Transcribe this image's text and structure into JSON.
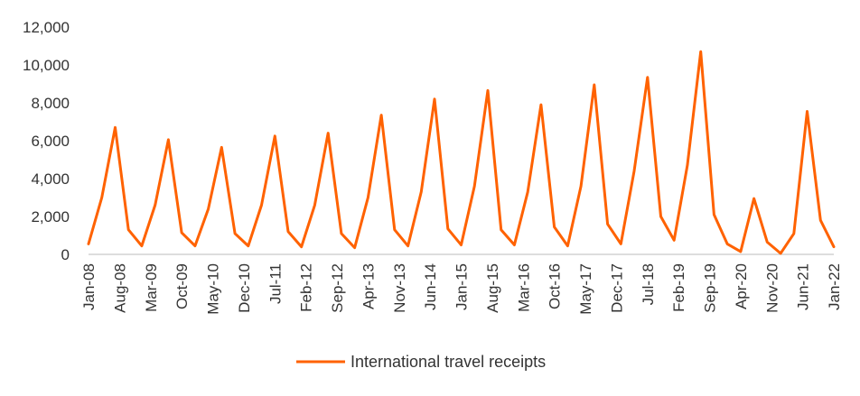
{
  "chart_data": {
    "type": "line",
    "ylim": [
      0,
      12000
    ],
    "y_ticks": [
      "0",
      "2,000",
      "4,000",
      "6,000",
      "8,000",
      "10,000",
      "12,000"
    ],
    "x_tick_labels": [
      "Jan-08",
      "Aug-08",
      "Mar-09",
      "Oct-09",
      "May-10",
      "Dec-10",
      "Jul-11",
      "Feb-12",
      "Sep-12",
      "Apr-13",
      "Nov-13",
      "Jun-14",
      "Jan-15",
      "Aug-15",
      "Mar-16",
      "Oct-16",
      "May-17",
      "Dec-17",
      "Jul-18",
      "Feb-19",
      "Sep-19",
      "Apr-20",
      "Nov-20",
      "Jun-21",
      "Jan-22"
    ],
    "grid": false,
    "legend_position": "bottom-center",
    "series": [
      {
        "name": "International travel receipts",
        "color": "#ff6200",
        "x": [
          "Jan-08",
          "Apr-08",
          "Jul-08",
          "Oct-08",
          "Jan-09",
          "Apr-09",
          "Jul-09",
          "Oct-09",
          "Jan-10",
          "Apr-10",
          "Jul-10",
          "Oct-10",
          "Jan-11",
          "Apr-11",
          "Jul-11",
          "Oct-11",
          "Jan-12",
          "Apr-12",
          "Jul-12",
          "Oct-12",
          "Jan-13",
          "Apr-13",
          "Jul-13",
          "Oct-13",
          "Jan-14",
          "Apr-14",
          "Jul-14",
          "Oct-14",
          "Jan-15",
          "Apr-15",
          "Jul-15",
          "Oct-15",
          "Jan-16",
          "Apr-16",
          "Jul-16",
          "Oct-16",
          "Jan-17",
          "Apr-17",
          "Jul-17",
          "Oct-17",
          "Jan-18",
          "Apr-18",
          "Jul-18",
          "Oct-18",
          "Jan-19",
          "Apr-19",
          "Jul-19",
          "Oct-19",
          "Jan-20",
          "Apr-20",
          "Jul-20",
          "Oct-20",
          "Jan-21",
          "Apr-21",
          "Jul-21",
          "Oct-21",
          "Jan-22"
        ],
        "values": [
          550,
          3000,
          6700,
          1300,
          450,
          2600,
          6050,
          1150,
          450,
          2400,
          5650,
          1100,
          450,
          2600,
          6250,
          1200,
          400,
          2600,
          6400,
          1100,
          350,
          3000,
          7350,
          1300,
          450,
          3300,
          8200,
          1350,
          500,
          3600,
          8650,
          1300,
          500,
          3300,
          7900,
          1450,
          450,
          3600,
          8950,
          1600,
          550,
          4400,
          9350,
          2000,
          750,
          4700,
          10700,
          2100,
          550,
          150,
          2950,
          650,
          50,
          1100,
          7550,
          1800,
          400
        ]
      }
    ]
  }
}
